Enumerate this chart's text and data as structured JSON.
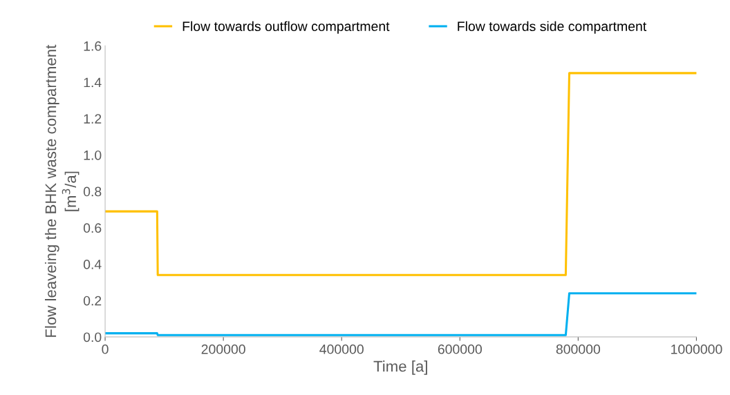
{
  "chart_data": {
    "type": "line",
    "xlabel": "Time [a]",
    "ylabel": "Flow leaveing the BHK waste compartment\n[m$^{3}$/a]",
    "series": [
      {
        "name": "Flow towards outflow compartment",
        "color": "#ffc000",
        "x": [
          0,
          88000,
          89000,
          779000,
          785000,
          1000000
        ],
        "values": [
          0.69,
          0.69,
          0.34,
          0.34,
          1.45,
          1.45
        ]
      },
      {
        "name": "Flow towards side compartment",
        "color": "#00b0f0",
        "x": [
          0,
          88000,
          89000,
          779000,
          785000,
          1000000
        ],
        "values": [
          0.02,
          0.02,
          0.01,
          0.01,
          0.24,
          0.24
        ]
      }
    ],
    "xlim": [
      0,
      1000000
    ],
    "xticks": [
      0,
      200000,
      400000,
      600000,
      800000,
      1000000
    ],
    "ylim": [
      0,
      1.6
    ],
    "yticks": [
      {
        "value": 0,
        "label": "0.0"
      },
      {
        "value": 0.2,
        "label": "0.2"
      },
      {
        "value": 0.4,
        "label": "0.4"
      },
      {
        "value": 0.6,
        "label": "0.6"
      },
      {
        "value": 0.8,
        "label": "0.8"
      },
      {
        "value": 1.0,
        "label": "1.0"
      },
      {
        "value": 1.2,
        "label": "1.2"
      },
      {
        "value": 1.4,
        "label": "1.4"
      },
      {
        "value": 1.6,
        "label": "1.6"
      }
    ],
    "grid": false,
    "legend": "top",
    "marker": "none",
    "line_style": "solid"
  }
}
